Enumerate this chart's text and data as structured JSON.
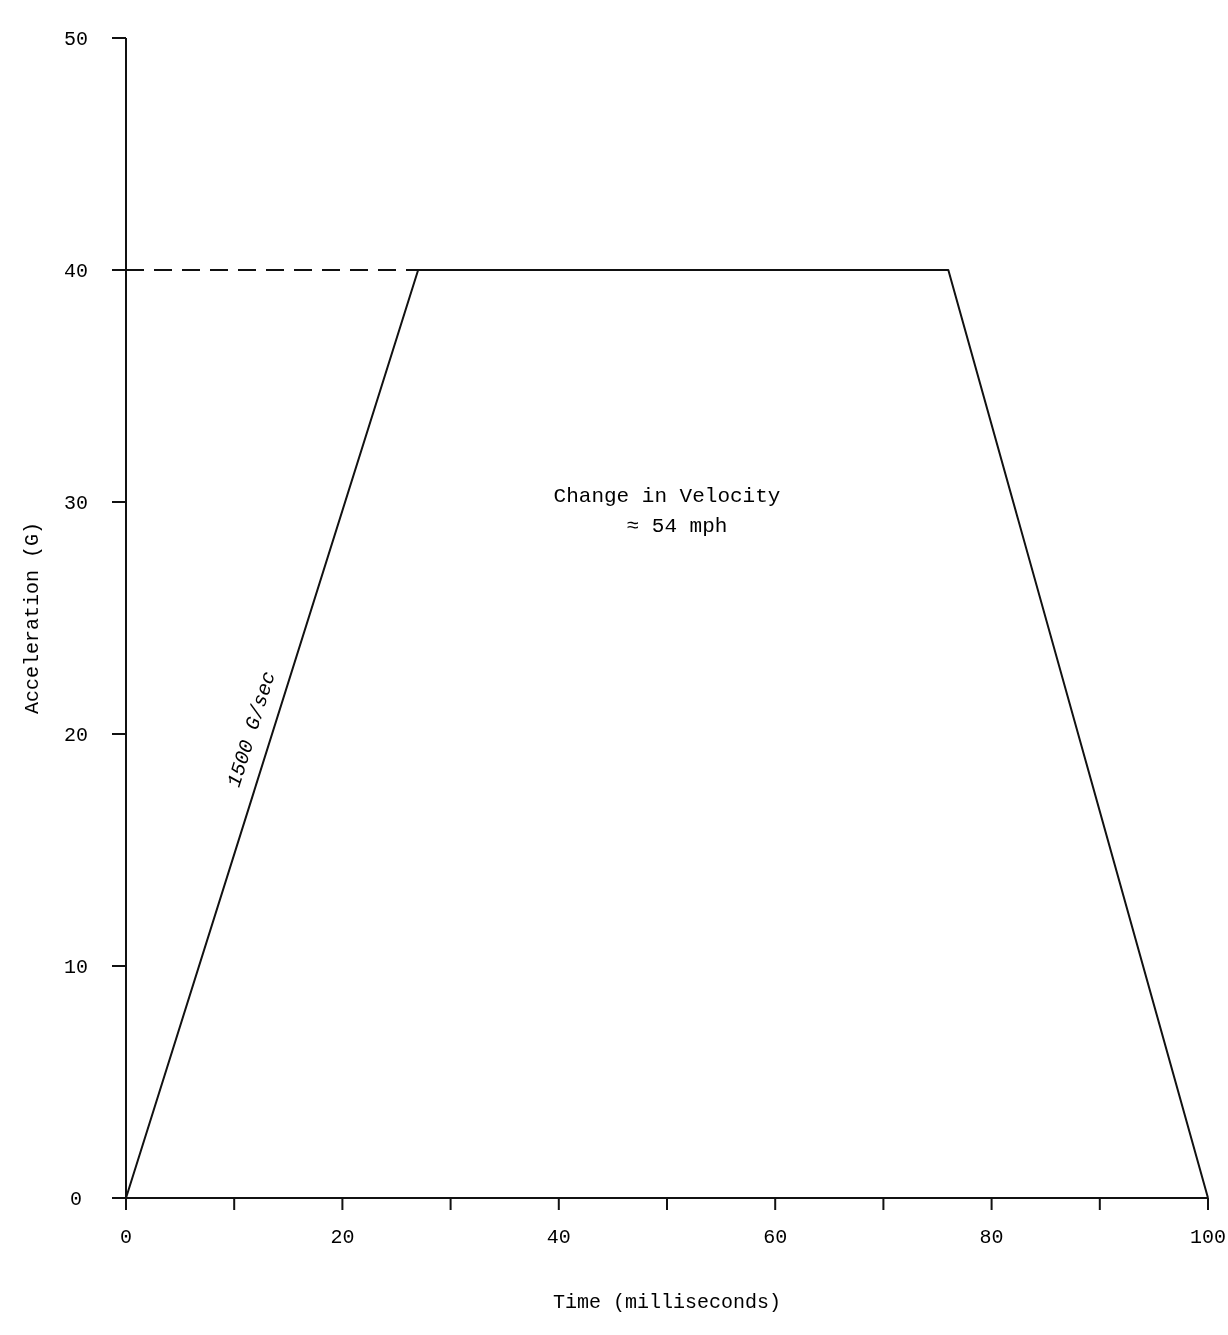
{
  "chart_data": {
    "type": "line",
    "xlabel": "Time (milliseconds)",
    "ylabel": "Acceleration (G)",
    "x": [
      0,
      27,
      76,
      100
    ],
    "series": [
      {
        "color": "#111111",
        "values": [
          0,
          40,
          40,
          0
        ]
      }
    ],
    "xlim": [
      0,
      100
    ],
    "ylim": [
      0,
      50
    ],
    "xticks": [
      0,
      {
        "value": 10,
        "label": null
      },
      20,
      {
        "value": 30,
        "label": null
      },
      40,
      {
        "value": 50,
        "label": null
      },
      60,
      {
        "value": 70,
        "label": null
      },
      80,
      {
        "value": 90,
        "label": null
      },
      100
    ],
    "yticks": [
      0,
      10,
      20,
      30,
      40,
      50
    ],
    "ref_lines": [
      {
        "axis": "y",
        "value": 40,
        "line_style": "dashed",
        "color": "#111111"
      }
    ],
    "annotations": [
      "Change in Velocity\n≈ 54 mph",
      {
        "text": "1500 G/sec",
        "x": 13,
        "y": 20
      }
    ],
    "grid": false,
    "marker": "none",
    "line_style": "solid"
  }
}
